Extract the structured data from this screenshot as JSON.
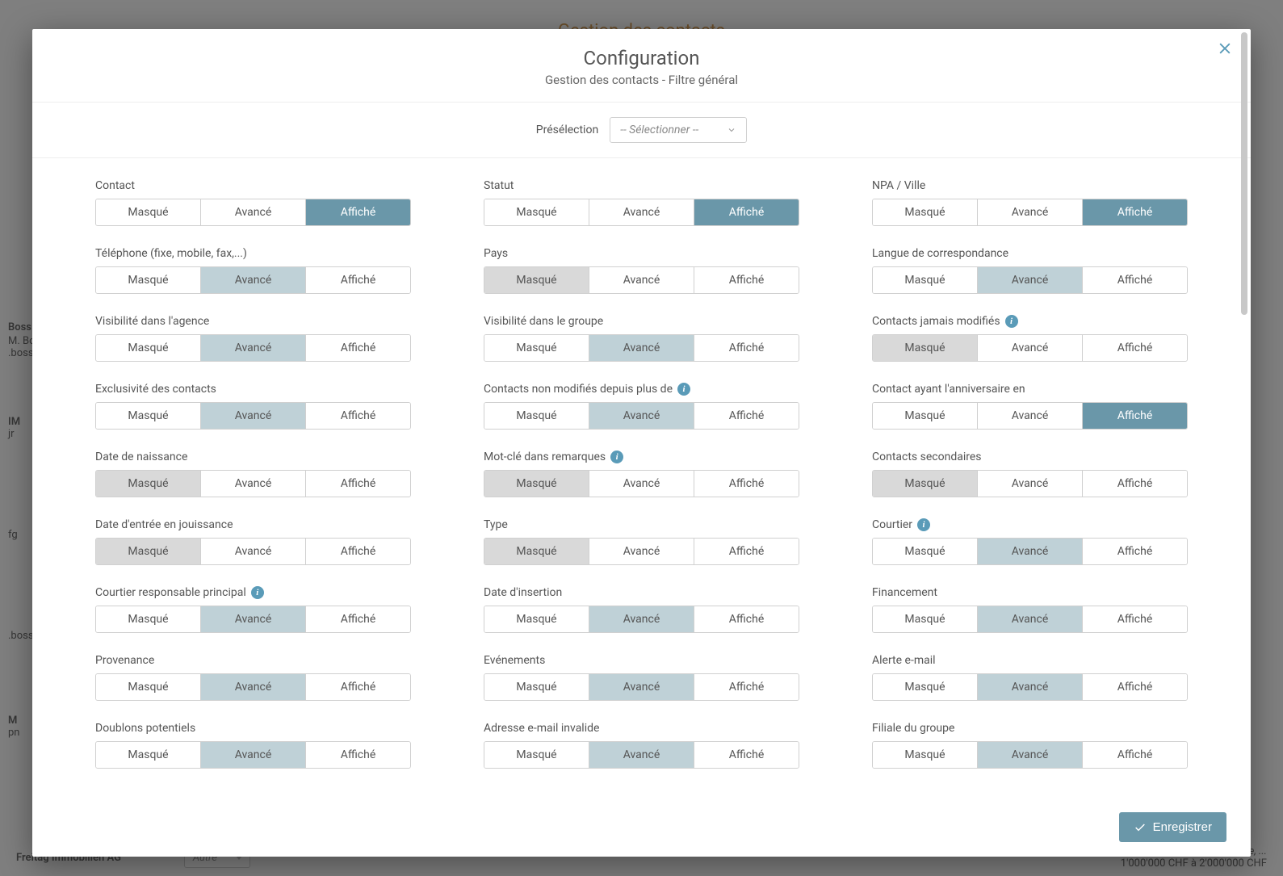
{
  "bg": {
    "title": "Gestion des contacts",
    "bossName": "Boss",
    "bossM": "M. Bo",
    "bossEmail": ".boss",
    "im": "IM",
    "jr": "jr",
    "fg": "fg",
    "boss2": ".boss",
    "m": "M",
    "pn": "pn",
    "company": "Freitag Immobilien AG",
    "autre": "Autre",
    "priceLine1": "jumelée, ...",
    "priceLine2": "1'000'000 CHF à 2'000'000 CHF"
  },
  "modal": {
    "title": "Configuration",
    "subtitle": "Gestion des contacts - Filtre général",
    "preselectLabel": "Présélection",
    "preselectPlaceholder": "-- Sélectionner --",
    "saveLabel": "Enregistrer"
  },
  "optLabels": {
    "masque": "Masqué",
    "avance": "Avancé",
    "affiche": "Affiché"
  },
  "fields": [
    {
      "label": "Contact",
      "active": "affiche",
      "info": false
    },
    {
      "label": "Statut",
      "active": "affiche",
      "info": false
    },
    {
      "label": "NPA / Ville",
      "active": "affiche",
      "info": false
    },
    {
      "label": "Téléphone (fixe, mobile, fax,...)",
      "active": "avance",
      "info": false
    },
    {
      "label": "Pays",
      "active": "masque",
      "info": false
    },
    {
      "label": "Langue de correspondance",
      "active": "avance",
      "info": false
    },
    {
      "label": "Visibilité dans l'agence",
      "active": "avance",
      "info": false
    },
    {
      "label": "Visibilité dans le groupe",
      "active": "avance",
      "info": false
    },
    {
      "label": "Contacts jamais modifiés",
      "active": "masque",
      "info": true
    },
    {
      "label": "Exclusivité des contacts",
      "active": "avance",
      "info": false
    },
    {
      "label": "Contacts non modifiés depuis plus de",
      "active": "avance",
      "info": true
    },
    {
      "label": "Contact ayant l'anniversaire en",
      "active": "affiche",
      "info": false
    },
    {
      "label": "Date de naissance",
      "active": "masque",
      "info": false
    },
    {
      "label": "Mot-clé dans remarques",
      "active": "masque",
      "info": true
    },
    {
      "label": "Contacts secondaires",
      "active": "masque",
      "info": false
    },
    {
      "label": "Date d'entrée en jouissance",
      "active": "masque",
      "info": false
    },
    {
      "label": "Type",
      "active": "masque",
      "info": false
    },
    {
      "label": "Courtier",
      "active": "avance",
      "info": true
    },
    {
      "label": "Courtier responsable principal",
      "active": "avance",
      "info": true
    },
    {
      "label": "Date d'insertion",
      "active": "avance",
      "info": false
    },
    {
      "label": "Financement",
      "active": "avance",
      "info": false
    },
    {
      "label": "Provenance",
      "active": "avance",
      "info": false
    },
    {
      "label": "Evénements",
      "active": "avance",
      "info": false
    },
    {
      "label": "Alerte e-mail",
      "active": "avance",
      "info": false
    },
    {
      "label": "Doublons potentiels",
      "active": "avance",
      "info": false
    },
    {
      "label": "Adresse e-mail invalide",
      "active": "avance",
      "info": false
    },
    {
      "label": "Filiale du groupe",
      "active": "avance",
      "info": false
    }
  ]
}
